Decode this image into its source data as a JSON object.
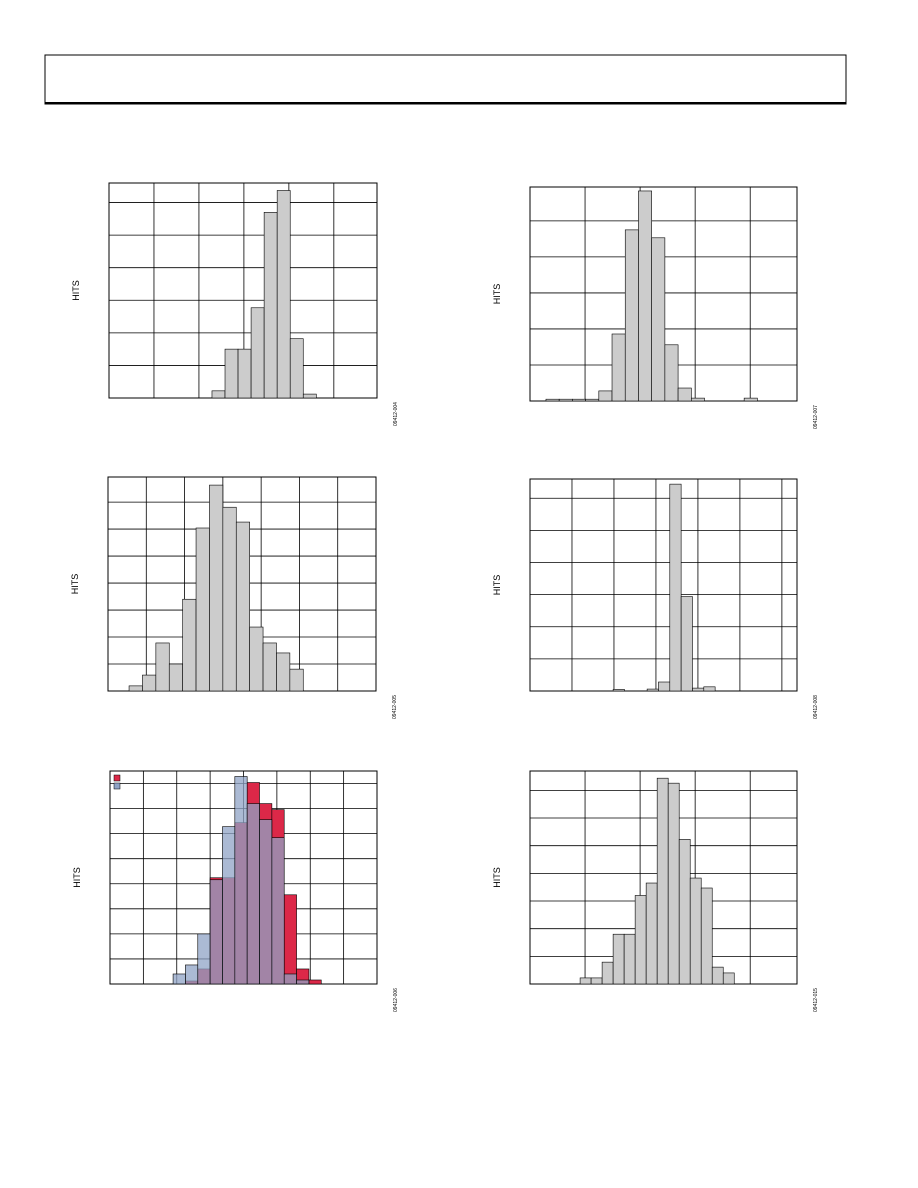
{
  "chart_data": [
    {
      "type": "histogram",
      "y_label": "HITS",
      "figure_id": "09412-004",
      "color": "#cccccc",
      "xlim": [
        0,
        5.96
      ],
      "ylim": [
        0,
        6.6
      ],
      "xticks": [
        1,
        2,
        3,
        4,
        5
      ],
      "yticks": [
        1,
        2,
        3,
        4,
        5,
        6
      ],
      "bins": [
        2.29,
        2.58,
        2.87,
        3.16,
        3.45,
        3.74,
        4.03,
        4.32,
        4.61
      ],
      "values": [
        0.22,
        1.5,
        1.5,
        2.77,
        5.7,
        6.37,
        1.82,
        0.12
      ]
    },
    {
      "type": "histogram",
      "y_label": "HITS",
      "figure_id": "09412-007",
      "color": "#cccccc",
      "xlim": [
        0,
        4.85
      ],
      "ylim": [
        0,
        5.94
      ],
      "xticks": [
        1,
        2,
        3,
        4
      ],
      "yticks": [
        1,
        2,
        3,
        4,
        5
      ],
      "bins": [
        0.29,
        0.53,
        0.77,
        1.01,
        1.25,
        1.49,
        1.73,
        1.97,
        2.21,
        2.45,
        2.69,
        2.93,
        3.17,
        3.41,
        3.65,
        3.89,
        4.13
      ],
      "values": [
        0.05,
        0.05,
        0.05,
        0.05,
        0.28,
        1.86,
        4.75,
        5.83,
        4.53,
        1.56,
        0.36,
        0.08,
        0,
        0,
        0,
        0.08
      ]
    },
    {
      "type": "histogram",
      "y_label": "HITS",
      "figure_id": "09412-005",
      "color": "#cccccc",
      "xlim": [
        0,
        7
      ],
      "ylim": [
        0,
        7.93
      ],
      "xticks": [
        1,
        2,
        3,
        4,
        5,
        6
      ],
      "yticks": [
        1,
        2,
        3,
        4,
        5,
        6,
        7
      ],
      "bins": [
        0.55,
        0.9,
        1.25,
        1.6,
        1.95,
        2.3,
        2.65,
        3.0,
        3.35,
        3.7,
        4.05,
        4.4,
        4.75,
        5.1
      ],
      "values": [
        0.19,
        0.59,
        1.78,
        1,
        3.4,
        6.04,
        7.63,
        6.81,
        6.26,
        2.37,
        1.78,
        1.41,
        0.81
      ]
    },
    {
      "type": "histogram",
      "y_label": "HITS",
      "figure_id": "09412-008",
      "color": "#cccccc",
      "xlim": [
        0,
        6.36
      ],
      "ylim": [
        0,
        6.6
      ],
      "xticks": [
        1,
        2,
        3,
        4,
        5,
        6
      ],
      "yticks": [
        1,
        2,
        3,
        4,
        5,
        6
      ],
      "bins": [
        1.98,
        2.25,
        2.52,
        2.79,
        3.06,
        3.33,
        3.6,
        3.87,
        4.14,
        4.41
      ],
      "values": [
        0.05,
        0,
        0,
        0.06,
        0.28,
        6.44,
        2.94,
        0.09,
        0.13
      ]
    },
    {
      "type": "histogram",
      "y_label": "HITS",
      "figure_id": "09412-006",
      "xlim": [
        0,
        8
      ],
      "ylim": [
        0,
        8.5
      ],
      "xticks": [
        1,
        2,
        3,
        4,
        5,
        6,
        7
      ],
      "yticks": [
        1,
        2,
        3,
        4,
        5,
        6,
        7,
        8
      ],
      "bins": [
        1.89,
        2.26,
        2.63,
        3.0,
        3.37,
        3.74,
        4.11,
        4.48,
        4.85,
        5.22,
        5.59,
        5.96,
        6.33
      ],
      "series": [
        {
          "color": "#dc2848",
          "values": [
            0,
            0.12,
            0.6,
            4.24,
            4.24,
            6.44,
            8.04,
            7.2,
            6.96,
            3.56,
            0.6,
            0.16
          ]
        },
        {
          "color": "#8fa3c6",
          "values": [
            0.4,
            0.76,
            2,
            4.16,
            6.28,
            8.28,
            7.2,
            6.56,
            5.84,
            0.4,
            0.16,
            0
          ]
        }
      ]
    },
    {
      "type": "histogram",
      "y_label": "HITS",
      "figure_id": "09412-015",
      "color": "#cccccc",
      "xlim": [
        0,
        4.85
      ],
      "ylim": [
        0,
        7.7
      ],
      "xticks": [
        1,
        2,
        3,
        4
      ],
      "yticks": [
        1,
        2,
        3,
        4,
        5,
        6,
        7
      ],
      "bins": [
        0.91,
        1.11,
        1.31,
        1.51,
        1.71,
        1.91,
        2.11,
        2.31,
        2.51,
        2.71,
        2.91,
        3.11,
        3.31,
        3.51,
        3.71
      ],
      "values": [
        0.22,
        0.22,
        0.79,
        1.8,
        1.8,
        3.2,
        3.65,
        7.44,
        7.26,
        5.23,
        3.83,
        3.47,
        0.61,
        0.4
      ]
    }
  ]
}
